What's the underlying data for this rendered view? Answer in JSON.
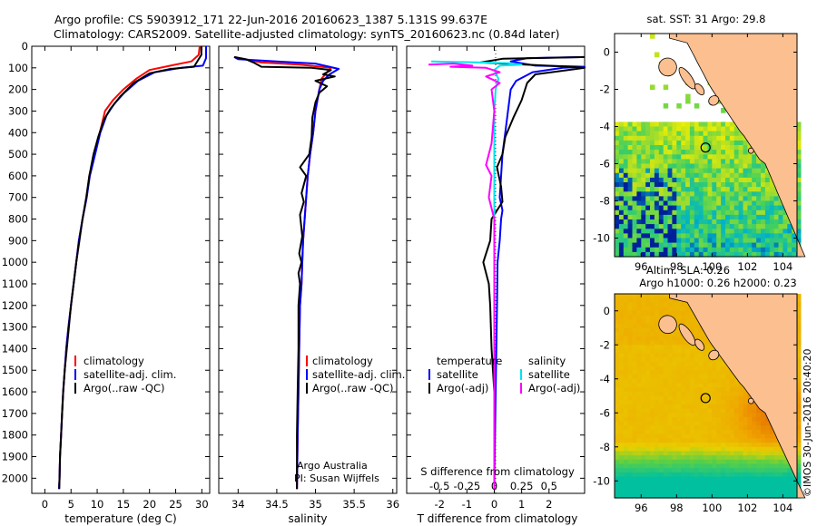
{
  "header": {
    "line1": "Argo profile: CS 5903912_171 22-Jun-2016 20160623_1387 5.131S 99.637E",
    "line2": "Climatology: CARS2009. Satellite-adjusted climatology: synTS_20160623.nc (0.84d later)"
  },
  "credit": "©IMOS 30-Jun-2016 20:40:20",
  "chart_data": [
    {
      "id": "temperature",
      "type": "line",
      "xlabel": "temperature (deg C)",
      "ylabel": "",
      "xlim": [
        -2.5,
        31.5
      ],
      "ylim": [
        2070,
        0
      ],
      "xticks": [
        0,
        5,
        10,
        15,
        20,
        25,
        30
      ],
      "yticks": [
        0,
        100,
        200,
        300,
        400,
        500,
        600,
        700,
        800,
        900,
        1000,
        1100,
        1200,
        1300,
        1400,
        1500,
        1600,
        1700,
        1800,
        1900,
        2000
      ],
      "legend": [
        "climatology",
        "satellite-adj. clim.",
        "Argo(..raw -QC)"
      ],
      "series": [
        {
          "name": "climatology",
          "color": "#ff0000",
          "points": [
            [
              29.6,
              0
            ],
            [
              29.4,
              40
            ],
            [
              28,
              70
            ],
            [
              24,
              90
            ],
            [
              20,
              110
            ],
            [
              17.5,
              150
            ],
            [
              15,
              200
            ],
            [
              13,
              250
            ],
            [
              11.5,
              300
            ],
            [
              10.5,
              400
            ],
            [
              9.5,
              500
            ],
            [
              8.5,
              600
            ],
            [
              8,
              700
            ],
            [
              7.2,
              800
            ],
            [
              6.5,
              900
            ],
            [
              6,
              1000
            ],
            [
              5.5,
              1100
            ],
            [
              5,
              1200
            ],
            [
              4.5,
              1300
            ],
            [
              4.1,
              1400
            ],
            [
              3.8,
              1500
            ],
            [
              3.5,
              1600
            ],
            [
              3.3,
              1700
            ],
            [
              3.1,
              1800
            ],
            [
              2.9,
              1900
            ],
            [
              2.8,
              2000
            ],
            [
              2.7,
              2050
            ]
          ]
        },
        {
          "name": "satellite",
          "color": "#0000ff",
          "points": [
            [
              30.8,
              0
            ],
            [
              30.8,
              55
            ],
            [
              30.2,
              90
            ],
            [
              26,
              100
            ],
            [
              21,
              120
            ],
            [
              17.8,
              160
            ],
            [
              15.2,
              215
            ],
            [
              13.3,
              265
            ],
            [
              11.8,
              320
            ],
            [
              10.6,
              400
            ],
            [
              9.6,
              500
            ],
            [
              8.6,
              600
            ],
            [
              8,
              700
            ],
            [
              7.2,
              800
            ],
            [
              6.5,
              900
            ],
            [
              6,
              1000
            ],
            [
              5.5,
              1100
            ],
            [
              5,
              1200
            ],
            [
              4.5,
              1300
            ],
            [
              4.1,
              1400
            ],
            [
              3.8,
              1500
            ],
            [
              3.5,
              1600
            ],
            [
              3.3,
              1700
            ],
            [
              3.1,
              1800
            ],
            [
              2.9,
              1900
            ],
            [
              2.8,
              2000
            ],
            [
              2.7,
              2050
            ]
          ]
        },
        {
          "name": "Argo",
          "color": "#000000",
          "points": [
            [
              29.9,
              0
            ],
            [
              29.9,
              40
            ],
            [
              28.5,
              95
            ],
            [
              24,
              105
            ],
            [
              20,
              125
            ],
            [
              17,
              170
            ],
            [
              14.5,
              230
            ],
            [
              12.5,
              290
            ],
            [
              11.3,
              340
            ],
            [
              10.2,
              420
            ],
            [
              9.3,
              500
            ],
            [
              8.5,
              600
            ],
            [
              7.9,
              700
            ],
            [
              7.2,
              800
            ],
            [
              6.6,
              900
            ],
            [
              6,
              1000
            ],
            [
              5.5,
              1100
            ],
            [
              5,
              1200
            ],
            [
              4.6,
              1300
            ],
            [
              4.2,
              1400
            ],
            [
              3.8,
              1500
            ],
            [
              3.5,
              1600
            ],
            [
              3.3,
              1700
            ],
            [
              3.1,
              1800
            ],
            [
              2.9,
              1900
            ],
            [
              2.8,
              2000
            ],
            [
              2.75,
              2050
            ]
          ]
        }
      ]
    },
    {
      "id": "salinity",
      "type": "line",
      "xlabel": "salinity",
      "xlim": [
        33.75,
        36.05
      ],
      "ylim": [
        2070,
        0
      ],
      "xticks": [
        34,
        34.5,
        35,
        35.5,
        36
      ],
      "legend": [
        "climatology",
        "satellite-adj. clim.",
        "Argo(..raw -QC)"
      ],
      "annotations": [
        "Argo Australia",
        "PI: Susan Wijffels"
      ],
      "series": [
        {
          "name": "climatology",
          "color": "#ff0000",
          "points": [
            [
              33.95,
              50
            ],
            [
              34.3,
              75
            ],
            [
              34.8,
              85
            ],
            [
              35.2,
              100
            ],
            [
              35.15,
              120
            ],
            [
              35.08,
              150
            ],
            [
              35.05,
              200
            ],
            [
              35.0,
              300
            ],
            [
              34.97,
              400
            ],
            [
              34.93,
              500
            ],
            [
              34.9,
              600
            ],
            [
              34.88,
              700
            ],
            [
              34.86,
              800
            ],
            [
              34.84,
              900
            ],
            [
              34.83,
              1000
            ],
            [
              34.82,
              1100
            ],
            [
              34.8,
              1200
            ],
            [
              34.79,
              1400
            ],
            [
              34.78,
              1600
            ],
            [
              34.77,
              1800
            ],
            [
              34.76,
              2050
            ]
          ]
        },
        {
          "name": "satellite",
          "color": "#0000ff",
          "points": [
            [
              33.95,
              50
            ],
            [
              34.0,
              60
            ],
            [
              34.5,
              70
            ],
            [
              35.0,
              80
            ],
            [
              35.3,
              105
            ],
            [
              35.18,
              130
            ],
            [
              35.1,
              160
            ],
            [
              35.05,
              200
            ],
            [
              35.0,
              300
            ],
            [
              34.97,
              400
            ],
            [
              34.93,
              500
            ],
            [
              34.9,
              600
            ],
            [
              34.88,
              700
            ],
            [
              34.86,
              800
            ],
            [
              34.84,
              900
            ],
            [
              34.83,
              1000
            ],
            [
              34.82,
              1100
            ],
            [
              34.8,
              1200
            ],
            [
              34.79,
              1400
            ],
            [
              34.78,
              1600
            ],
            [
              34.77,
              1800
            ],
            [
              34.76,
              2050
            ]
          ]
        },
        {
          "name": "Argo",
          "color": "#000000",
          "points": [
            [
              33.95,
              50
            ],
            [
              34.1,
              60
            ],
            [
              34.2,
              75
            ],
            [
              34.3,
              95
            ],
            [
              34.95,
              100
            ],
            [
              35.2,
              110
            ],
            [
              35.1,
              130
            ],
            [
              35.25,
              140
            ],
            [
              35.0,
              160
            ],
            [
              35.15,
              185
            ],
            [
              35.05,
              215
            ],
            [
              35.0,
              260
            ],
            [
              34.96,
              330
            ],
            [
              34.95,
              420
            ],
            [
              34.92,
              500
            ],
            [
              34.8,
              560
            ],
            [
              34.88,
              600
            ],
            [
              34.82,
              680
            ],
            [
              34.85,
              720
            ],
            [
              34.8,
              780
            ],
            [
              34.83,
              880
            ],
            [
              34.79,
              960
            ],
            [
              34.82,
              1000
            ],
            [
              34.78,
              1050
            ],
            [
              34.8,
              1100
            ],
            [
              34.78,
              1200
            ],
            [
              34.78,
              1400
            ],
            [
              34.77,
              1600
            ],
            [
              34.76,
              1800
            ],
            [
              34.76,
              2050
            ]
          ]
        }
      ]
    },
    {
      "id": "differences",
      "type": "line",
      "xlabel": "T difference from climatology",
      "xlabel2": "S difference from climatology",
      "xlim": [
        -3.2,
        3.3
      ],
      "ylim": [
        2070,
        0
      ],
      "xticks": [
        -2,
        -1,
        0,
        1,
        2
      ],
      "xticks2_labels": [
        "-0.5",
        "-0.25",
        "0",
        "0.25",
        "0.5"
      ],
      "xticks2_pos": [
        -2,
        -1,
        0,
        1,
        2
      ],
      "legend": {
        "temperature_title": "temperature",
        "salinity_title": "salinity",
        "satellite": "satellite",
        "argo": "Argo(-adj)"
      },
      "series": [
        {
          "name": "T satellite",
          "color": "#0000ff",
          "points": [
            [
              3.3,
              50
            ],
            [
              1.2,
              55
            ],
            [
              0.6,
              70
            ],
            [
              1.5,
              90
            ],
            [
              3.3,
              95
            ],
            [
              2.5,
              100
            ],
            [
              1.4,
              120
            ],
            [
              0.8,
              160
            ],
            [
              0.6,
              200
            ],
            [
              0.5,
              300
            ],
            [
              0.4,
              400
            ],
            [
              0.3,
              500
            ],
            [
              0.25,
              600
            ],
            [
              0.2,
              700
            ],
            [
              0.3,
              760
            ],
            [
              0.25,
              800
            ],
            [
              0.2,
              900
            ],
            [
              0.12,
              1000
            ],
            [
              0.1,
              1200
            ],
            [
              0.05,
              1600
            ],
            [
              0.0,
              2050
            ]
          ]
        },
        {
          "name": "T Argo",
          "color": "#000000",
          "points": [
            [
              3.3,
              50
            ],
            [
              0.3,
              58
            ],
            [
              -0.5,
              75
            ],
            [
              2.8,
              95
            ],
            [
              3.3,
              100
            ],
            [
              1.5,
              130
            ],
            [
              1.2,
              170
            ],
            [
              1.0,
              250
            ],
            [
              0.7,
              330
            ],
            [
              0.4,
              420
            ],
            [
              0.3,
              500
            ],
            [
              0.1,
              560
            ],
            [
              0.25,
              650
            ],
            [
              0.3,
              720
            ],
            [
              -0.1,
              800
            ],
            [
              -0.15,
              900
            ],
            [
              -0.4,
              1000
            ],
            [
              -0.2,
              1100
            ],
            [
              -0.15,
              1200
            ],
            [
              -0.1,
              1400
            ],
            [
              0.0,
              1600
            ],
            [
              0.0,
              2050
            ]
          ]
        },
        {
          "name": "S satellite",
          "color": "#00e5ee",
          "points": [
            [
              -2.3,
              70
            ],
            [
              -0.5,
              75
            ],
            [
              0.5,
              78
            ],
            [
              1.0,
              85
            ],
            [
              0.2,
              90
            ],
            [
              0.0,
              110
            ],
            [
              0.15,
              150
            ],
            [
              0.05,
              200
            ],
            [
              0.0,
              300
            ],
            [
              0.0,
              600
            ],
            [
              0.0,
              1000
            ],
            [
              0.0,
              2050
            ]
          ]
        },
        {
          "name": "S Argo",
          "color": "#ff00ff",
          "points": [
            [
              -2.4,
              85
            ],
            [
              -1.5,
              80
            ],
            [
              -0.8,
              90
            ],
            [
              -1.6,
              95
            ],
            [
              -0.3,
              100
            ],
            [
              0.2,
              120
            ],
            [
              -0.3,
              140
            ],
            [
              0.2,
              170
            ],
            [
              -0.1,
              200
            ],
            [
              0.0,
              300
            ],
            [
              -0.1,
              450
            ],
            [
              -0.3,
              550
            ],
            [
              -0.1,
              600
            ],
            [
              -0.2,
              700
            ],
            [
              0.0,
              800
            ],
            [
              0.0,
              1000
            ],
            [
              0.0,
              2050
            ]
          ]
        }
      ]
    },
    {
      "id": "sst-map",
      "type": "heatmap",
      "title": "sat. SST: 31  Argo: 29.8",
      "xlim": [
        94.5,
        104.8
      ],
      "ylim": [
        -11,
        1
      ],
      "xticks": [
        96,
        98,
        100,
        102,
        104
      ],
      "yticks": [
        0,
        -2,
        -4,
        -6,
        -8,
        -10
      ],
      "argo_position": {
        "lon": 99.637,
        "lat": -5.131
      }
    },
    {
      "id": "sla-map",
      "type": "heatmap",
      "title": "Altim. SLA: 0.26",
      "subtitle": "Argo h1000: 0.26 h2000: 0.23",
      "xlim": [
        94.5,
        104.8
      ],
      "ylim": [
        -11,
        1
      ],
      "xticks": [
        96,
        98,
        100,
        102,
        104
      ],
      "yticks": [
        0,
        -2,
        -4,
        -6,
        -8,
        -10
      ],
      "argo_position": {
        "lon": 99.637,
        "lat": -5.131
      }
    }
  ]
}
